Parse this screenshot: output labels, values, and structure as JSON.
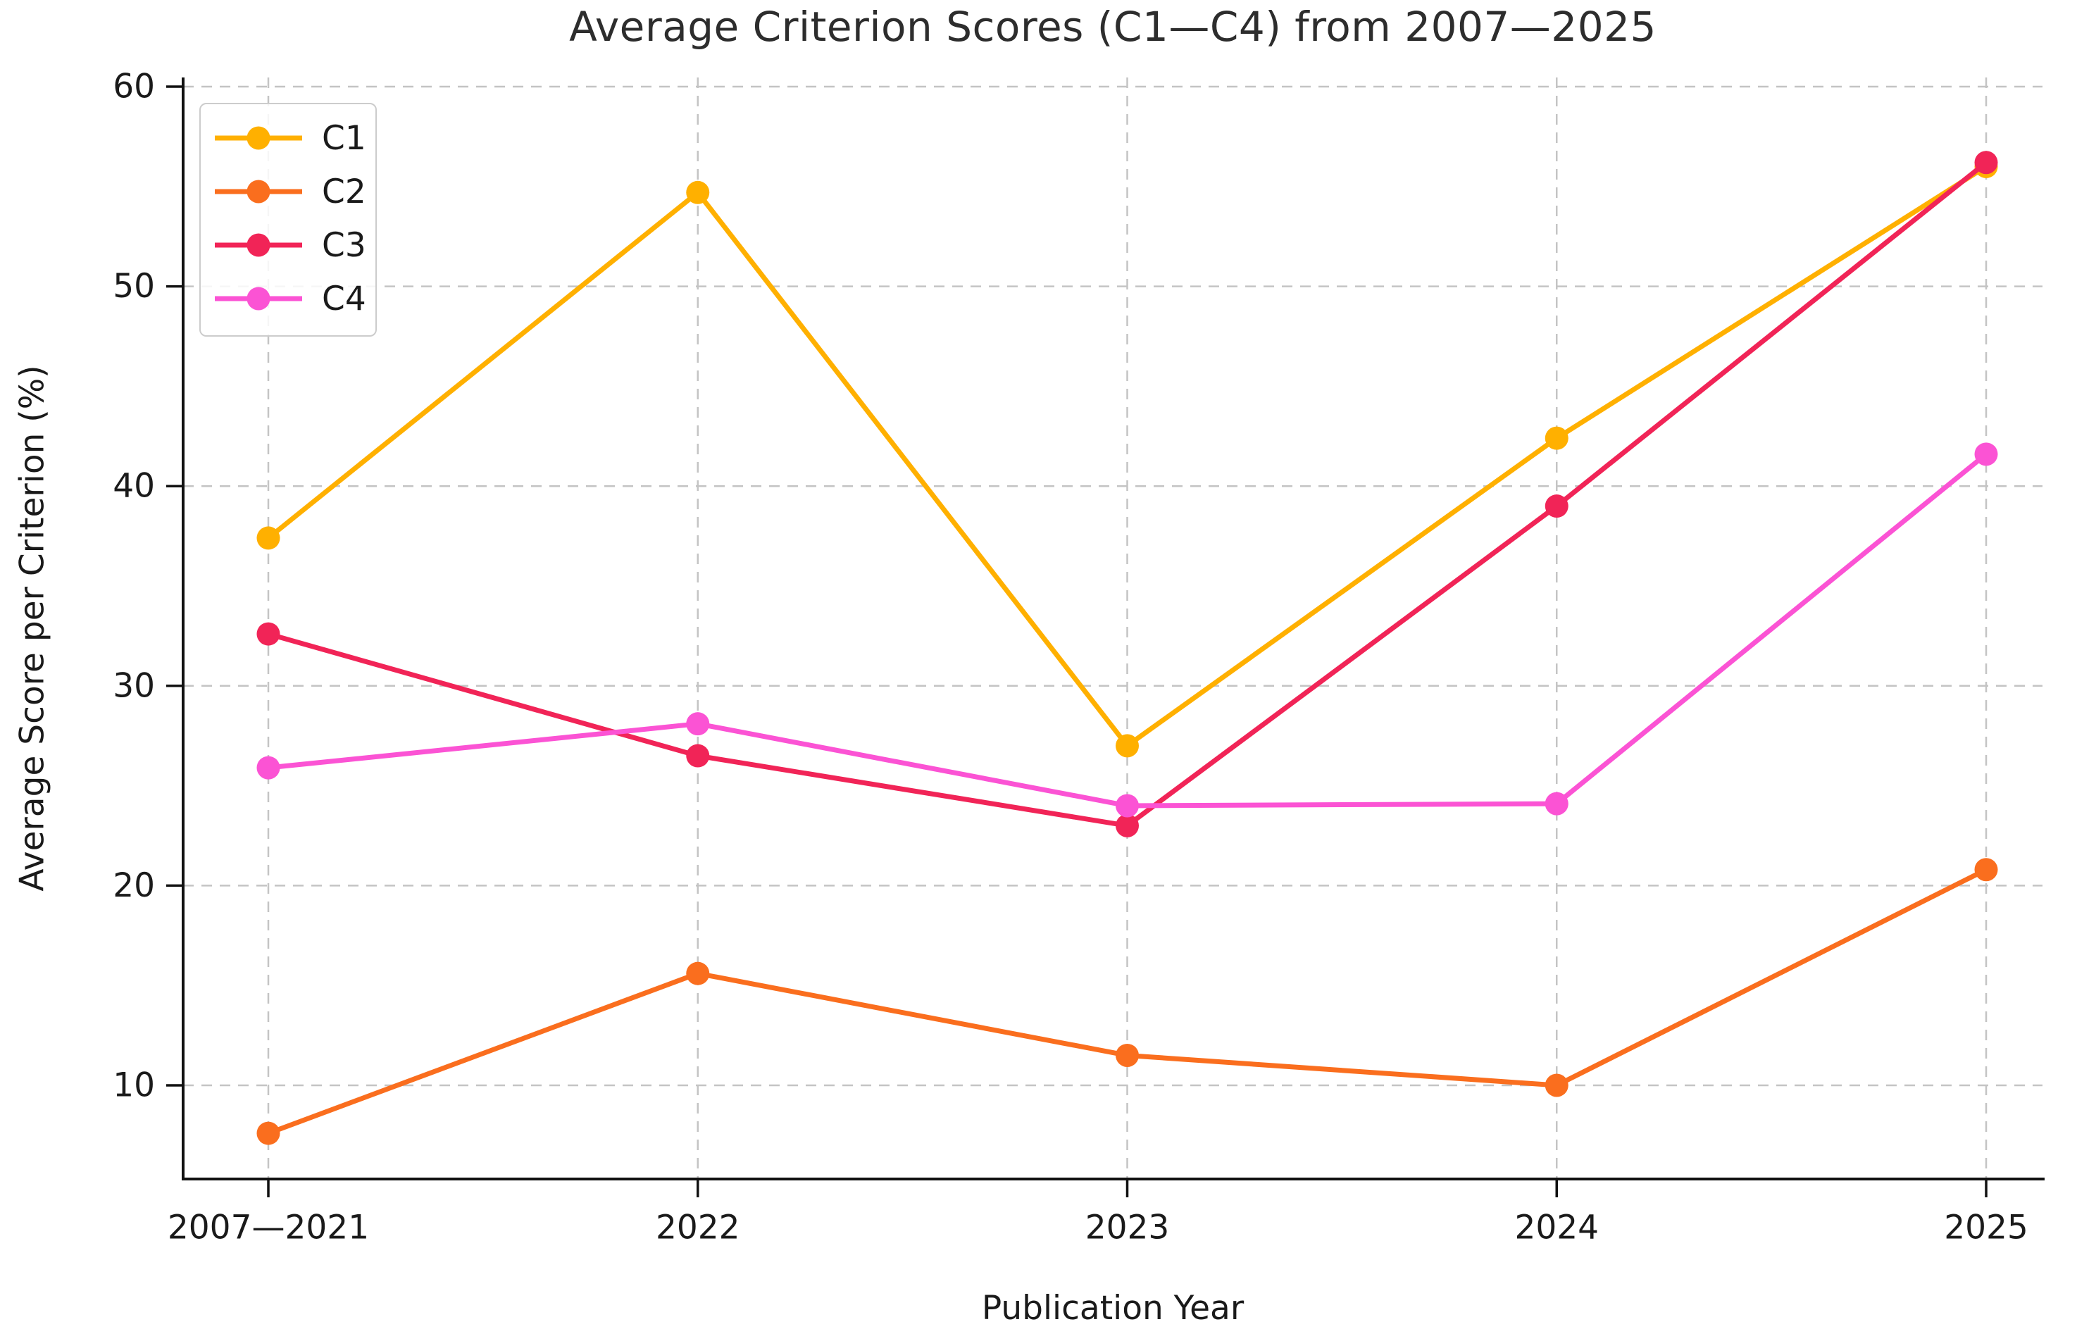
{
  "chart_data": {
    "type": "line",
    "title": "Average Criterion Scores (C1—C4) from 2007—2025",
    "xlabel": "Publication Year",
    "ylabel": "Average Score per Criterion (%)",
    "categories": [
      "2007—2021",
      "2022",
      "2023",
      "2024",
      "2025"
    ],
    "series": [
      {
        "name": "C1",
        "color": "#FFB000",
        "values": [
          37.4,
          54.7,
          27.0,
          42.4,
          56.0
        ]
      },
      {
        "name": "C2",
        "color": "#FA6E1E",
        "values": [
          7.6,
          15.6,
          11.5,
          10.0,
          20.8
        ]
      },
      {
        "name": "C3",
        "color": "#F12457",
        "values": [
          32.6,
          26.5,
          23.0,
          39.0,
          56.2
        ]
      },
      {
        "name": "C4",
        "color": "#FB53D4",
        "values": [
          25.9,
          28.1,
          24.0,
          24.1,
          41.6
        ]
      }
    ],
    "yticks": [
      10,
      20,
      30,
      40,
      50,
      60
    ],
    "ylim": [
      5.3,
      60.5
    ],
    "grid": true,
    "grid_style": "dashed",
    "legend_position": "upper-left",
    "marker": "circle"
  },
  "colors": {
    "grid": "#c4c4c4",
    "spine": "#111111",
    "tick_text": "#1a1a1a",
    "title_text": "#2d2d2d"
  }
}
